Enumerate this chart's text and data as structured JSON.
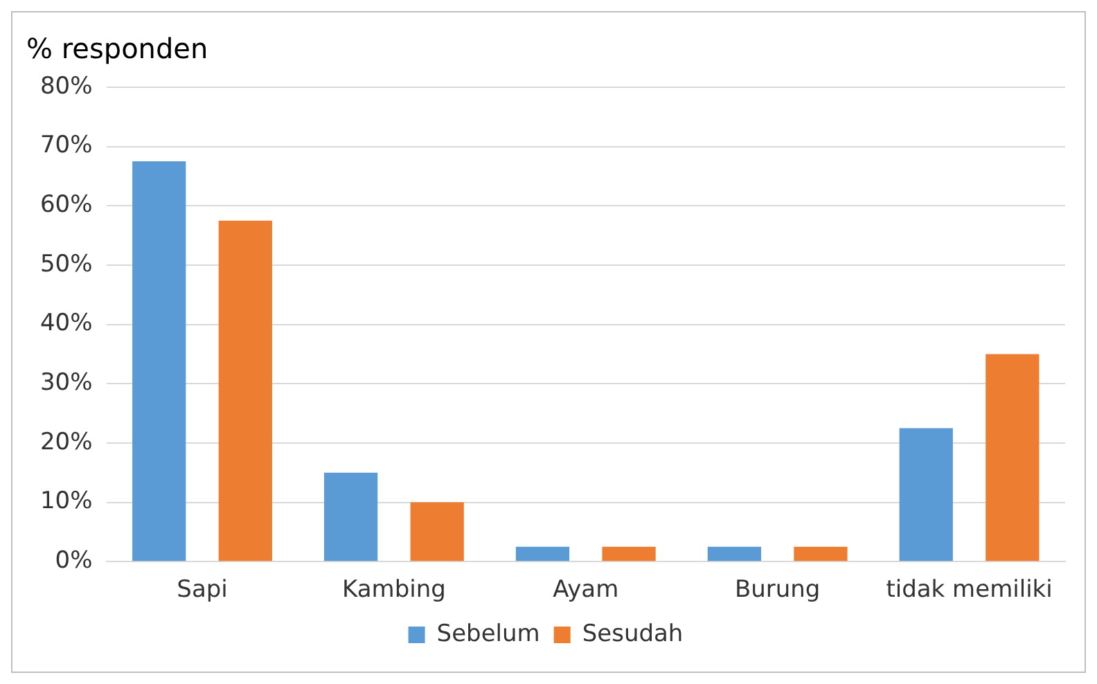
{
  "chart_data": {
    "type": "bar",
    "ylabel": "% responden",
    "categories": [
      "Sapi",
      "Kambing",
      "Ayam",
      "Burung",
      "tidak memiliki"
    ],
    "series": [
      {
        "name": "Sebelum",
        "color": "#5b9bd5",
        "values": [
          67.5,
          15,
          2.5,
          2.5,
          22.5
        ]
      },
      {
        "name": "Sesudah",
        "color": "#ed7d31",
        "values": [
          57.5,
          10,
          2.5,
          2.5,
          35
        ]
      }
    ],
    "ylim": [
      0,
      80
    ],
    "yticks": [
      {
        "value": 0,
        "label": "0%"
      },
      {
        "value": 10,
        "label": "10%"
      },
      {
        "value": 20,
        "label": "20%"
      },
      {
        "value": 30,
        "label": "30%"
      },
      {
        "value": 40,
        "label": "40%"
      },
      {
        "value": 50,
        "label": "50%"
      },
      {
        "value": 60,
        "label": "60%"
      },
      {
        "value": 70,
        "label": "70%"
      },
      {
        "value": 80,
        "label": "80%"
      }
    ],
    "grid": "y",
    "legend": "bottom"
  }
}
